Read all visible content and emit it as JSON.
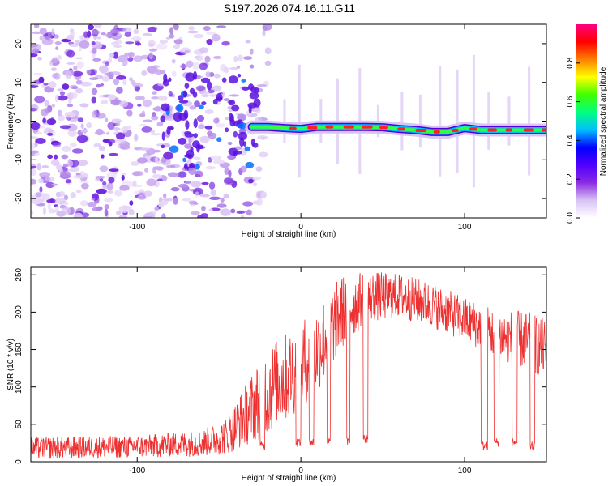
{
  "title": "S197.2026.074.16.11.G11",
  "chart_data": [
    {
      "type": "heatmap",
      "title": "S197.2026.074.16.11.G11",
      "xlabel": "Height of straight line (km)",
      "ylabel": "Frequency (Hz)",
      "xlim": [
        -165,
        150
      ],
      "ylim": [
        -25,
        25
      ],
      "xticks": [
        -100,
        0,
        100
      ],
      "yticks": [
        -20,
        -10,
        0,
        10,
        20
      ],
      "colorbar": {
        "label": "Normalized spectral amplitude",
        "range": [
          0,
          1
        ],
        "ticks": [
          "0.0",
          "0.2",
          "0.4",
          "0.6",
          "0.8"
        ],
        "colors": [
          "#ffffff",
          "#d9c2f5",
          "#8a2be2",
          "#5000ff",
          "#0000ff",
          "#00bfff",
          "#00ff80",
          "#40ff00",
          "#ffff00",
          "#ff8000",
          "#ff0000",
          "#ff0080"
        ]
      },
      "ridge": {
        "description_free": true,
        "points": [
          {
            "x": -30,
            "y": -1.5
          },
          {
            "x": -20,
            "y": -1.5
          },
          {
            "x": -10,
            "y": -1.8
          },
          {
            "x": 0,
            "y": -2.0
          },
          {
            "x": 10,
            "y": -1.5
          },
          {
            "x": 20,
            "y": -1.5
          },
          {
            "x": 30,
            "y": -1.5
          },
          {
            "x": 40,
            "y": -1.5
          },
          {
            "x": 50,
            "y": -1.6
          },
          {
            "x": 60,
            "y": -2.0
          },
          {
            "x": 70,
            "y": -2.3
          },
          {
            "x": 80,
            "y": -2.8
          },
          {
            "x": 90,
            "y": -2.8
          },
          {
            "x": 100,
            "y": -1.8
          },
          {
            "x": 110,
            "y": -2.3
          },
          {
            "x": 120,
            "y": -2.3
          },
          {
            "x": 130,
            "y": -2.3
          },
          {
            "x": 140,
            "y": -2.3
          },
          {
            "x": 150,
            "y": -2.3
          }
        ]
      }
    },
    {
      "type": "line",
      "xlabel": "Height of straight line (km)",
      "ylabel": "SNR (10 * v/v)",
      "xlim": [
        -165,
        150
      ],
      "ylim": [
        0,
        260
      ],
      "xticks": [
        -100,
        0,
        100
      ],
      "yticks": [
        0,
        50,
        100,
        150,
        200,
        250
      ],
      "series": [
        {
          "name": "SNR",
          "color": "#ee3030",
          "envelope": [
            {
              "x": -165,
              "mean": 18,
              "spread": 15
            },
            {
              "x": -100,
              "mean": 20,
              "spread": 15
            },
            {
              "x": -60,
              "mean": 25,
              "spread": 18
            },
            {
              "x": -45,
              "mean": 35,
              "spread": 25
            },
            {
              "x": -35,
              "mean": 60,
              "spread": 40
            },
            {
              "x": -20,
              "mean": 95,
              "spread": 60
            },
            {
              "x": -5,
              "mean": 120,
              "spread": 60
            },
            {
              "x": 10,
              "mean": 150,
              "spread": 60
            },
            {
              "x": 25,
              "mean": 200,
              "spread": 50
            },
            {
              "x": 40,
              "mean": 220,
              "spread": 35
            },
            {
              "x": 60,
              "mean": 222,
              "spread": 30
            },
            {
              "x": 80,
              "mean": 210,
              "spread": 30
            },
            {
              "x": 100,
              "mean": 190,
              "spread": 30
            },
            {
              "x": 120,
              "mean": 170,
              "spread": 35
            },
            {
              "x": 140,
              "mean": 160,
              "spread": 40
            },
            {
              "x": 150,
              "mean": 150,
              "spread": 40
            }
          ],
          "dropouts": [
            {
              "x0": -25,
              "x1": -22,
              "value": 15
            },
            {
              "x0": -3,
              "x1": 0,
              "value": 20
            },
            {
              "x0": 5,
              "x1": 8,
              "value": 20
            },
            {
              "x0": 16,
              "x1": 18,
              "value": 20
            },
            {
              "x0": 28,
              "x1": 30,
              "value": 20
            },
            {
              "x0": 38,
              "x1": 41,
              "value": 25
            },
            {
              "x0": 110,
              "x1": 114,
              "value": 15
            },
            {
              "x0": 118,
              "x1": 121,
              "value": 20
            },
            {
              "x0": 129,
              "x1": 132,
              "value": 20
            },
            {
              "x0": 140,
              "x1": 143,
              "value": 15
            }
          ]
        }
      ]
    }
  ]
}
